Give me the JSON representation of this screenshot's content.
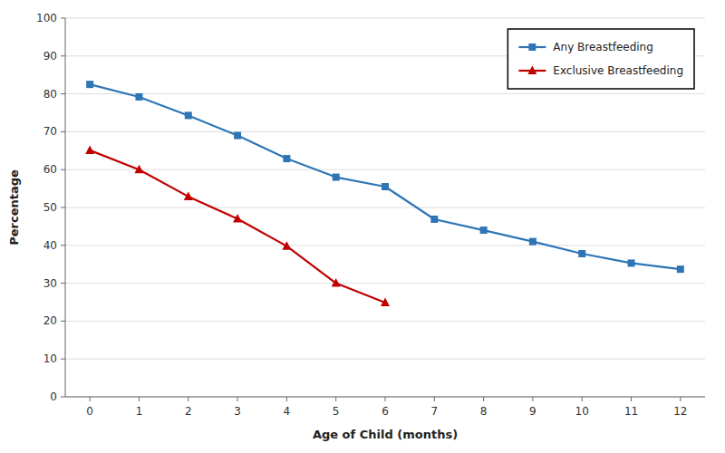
{
  "chart_data": {
    "type": "line",
    "xlabel": "Age of Child (months)",
    "ylabel": "Percentage",
    "series": [
      {
        "name": "Any Breastfeeding",
        "color": "#2E75B6",
        "marker": "square",
        "x": [
          0,
          1,
          2,
          3,
          4,
          5,
          6,
          7,
          8,
          9,
          10,
          11,
          12
        ],
        "values": [
          82.5,
          79.2,
          74.3,
          69.0,
          62.9,
          58.0,
          55.5,
          46.9,
          44.0,
          41.0,
          37.8,
          35.3,
          33.7
        ]
      },
      {
        "name": "Exclusive Breastfeeding",
        "color": "#C00000",
        "marker": "triangle",
        "x": [
          0,
          1,
          2,
          3,
          4,
          5,
          6
        ],
        "values": [
          65.1,
          60.0,
          52.9,
          47.0,
          39.8,
          30.0,
          24.9
        ]
      }
    ],
    "xlim": [
      -0.5,
      12.5
    ],
    "ylim": [
      0,
      100
    ],
    "xticks": [
      0,
      1,
      2,
      3,
      4,
      5,
      6,
      7,
      8,
      9,
      10,
      11,
      12
    ],
    "yticks": [
      0,
      10,
      20,
      30,
      40,
      50,
      60,
      70,
      80,
      90,
      100
    ],
    "grid": "y",
    "legend": "upper right"
  }
}
